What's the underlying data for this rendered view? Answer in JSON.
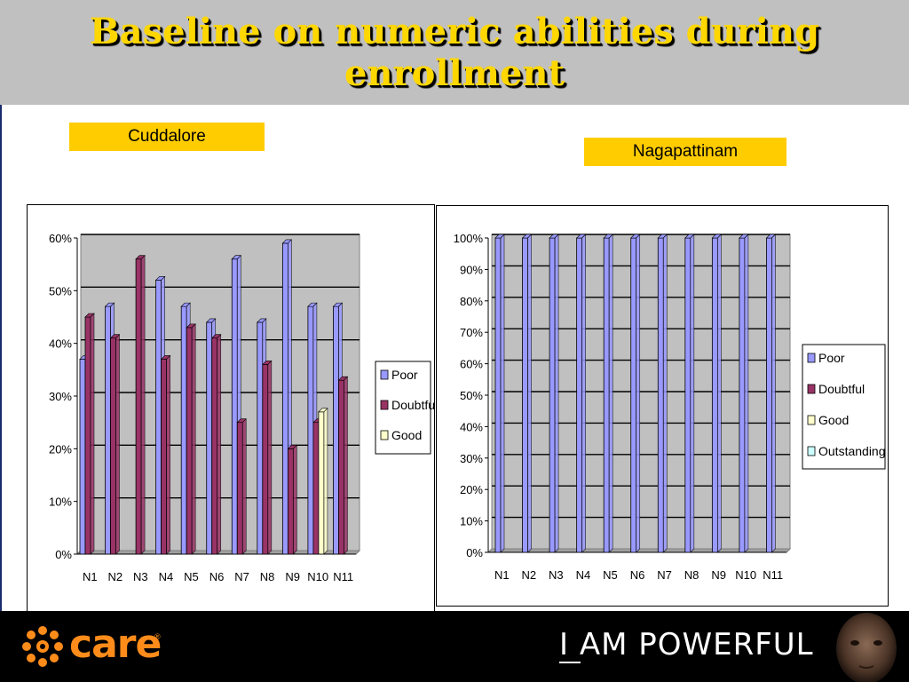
{
  "slide": {
    "title": "Baseline on numeric abilities during enrollment",
    "colors": {
      "header_bg": "#c0c0c0",
      "title": "#ffd700",
      "label_bg": "#ffcc00",
      "footer_bg": "#000000",
      "brand_orange": "#ff8c1a"
    }
  },
  "labels": {
    "left_region": "Cuddalore",
    "right_region": "Nagapattinam"
  },
  "footer": {
    "brand": "care",
    "trademark": "®",
    "slogan": "I AM POWERFUL"
  },
  "chart_data": [
    {
      "type": "bar",
      "categories": [
        "N1",
        "N2",
        "N3",
        "N4",
        "N5",
        "N6",
        "N7",
        "N8",
        "N9",
        "N10",
        "N11"
      ],
      "series": [
        {
          "name": "Poor",
          "color": "#9999ff",
          "values": [
            37,
            47,
            0,
            52,
            47,
            44,
            56,
            44,
            59,
            47,
            47
          ]
        },
        {
          "name": "Doubtful",
          "color": "#993366",
          "values": [
            45,
            41,
            56,
            37,
            43,
            41,
            25,
            36,
            20,
            25,
            33
          ]
        },
        {
          "name": "Good",
          "color": "#ffffcc",
          "values": [
            0,
            0,
            0,
            0,
            0,
            0,
            0,
            0,
            0,
            27,
            0
          ]
        }
      ],
      "yticks": [
        "0%",
        "10%",
        "20%",
        "30%",
        "40%",
        "50%",
        "60%"
      ],
      "ylim": [
        0,
        60
      ],
      "grid": true,
      "legend": "right"
    },
    {
      "type": "bar",
      "categories": [
        "N1",
        "N2",
        "N3",
        "N4",
        "N5",
        "N6",
        "N7",
        "N8",
        "N9",
        "N10",
        "N11"
      ],
      "series": [
        {
          "name": "Poor",
          "color": "#9999ff",
          "values": [
            100,
            100,
            100,
            100,
            100,
            100,
            100,
            100,
            100,
            100,
            100
          ]
        },
        {
          "name": "Doubtful",
          "color": "#993366",
          "values": [
            0,
            0,
            0,
            0,
            0,
            0,
            0,
            0,
            0,
            0,
            0
          ]
        },
        {
          "name": "Good",
          "color": "#ffffcc",
          "values": [
            0,
            0,
            0,
            0,
            0,
            0,
            0,
            0,
            0,
            0,
            0
          ]
        },
        {
          "name": "Outstanding",
          "color": "#ccffff",
          "values": [
            0,
            0,
            0,
            0,
            0,
            0,
            0,
            0,
            0,
            0,
            0
          ]
        }
      ],
      "yticks": [
        "0%",
        "10%",
        "20%",
        "30%",
        "40%",
        "50%",
        "60%",
        "70%",
        "80%",
        "90%",
        "100%"
      ],
      "ylim": [
        0,
        100
      ],
      "grid": true,
      "legend": "right"
    }
  ]
}
